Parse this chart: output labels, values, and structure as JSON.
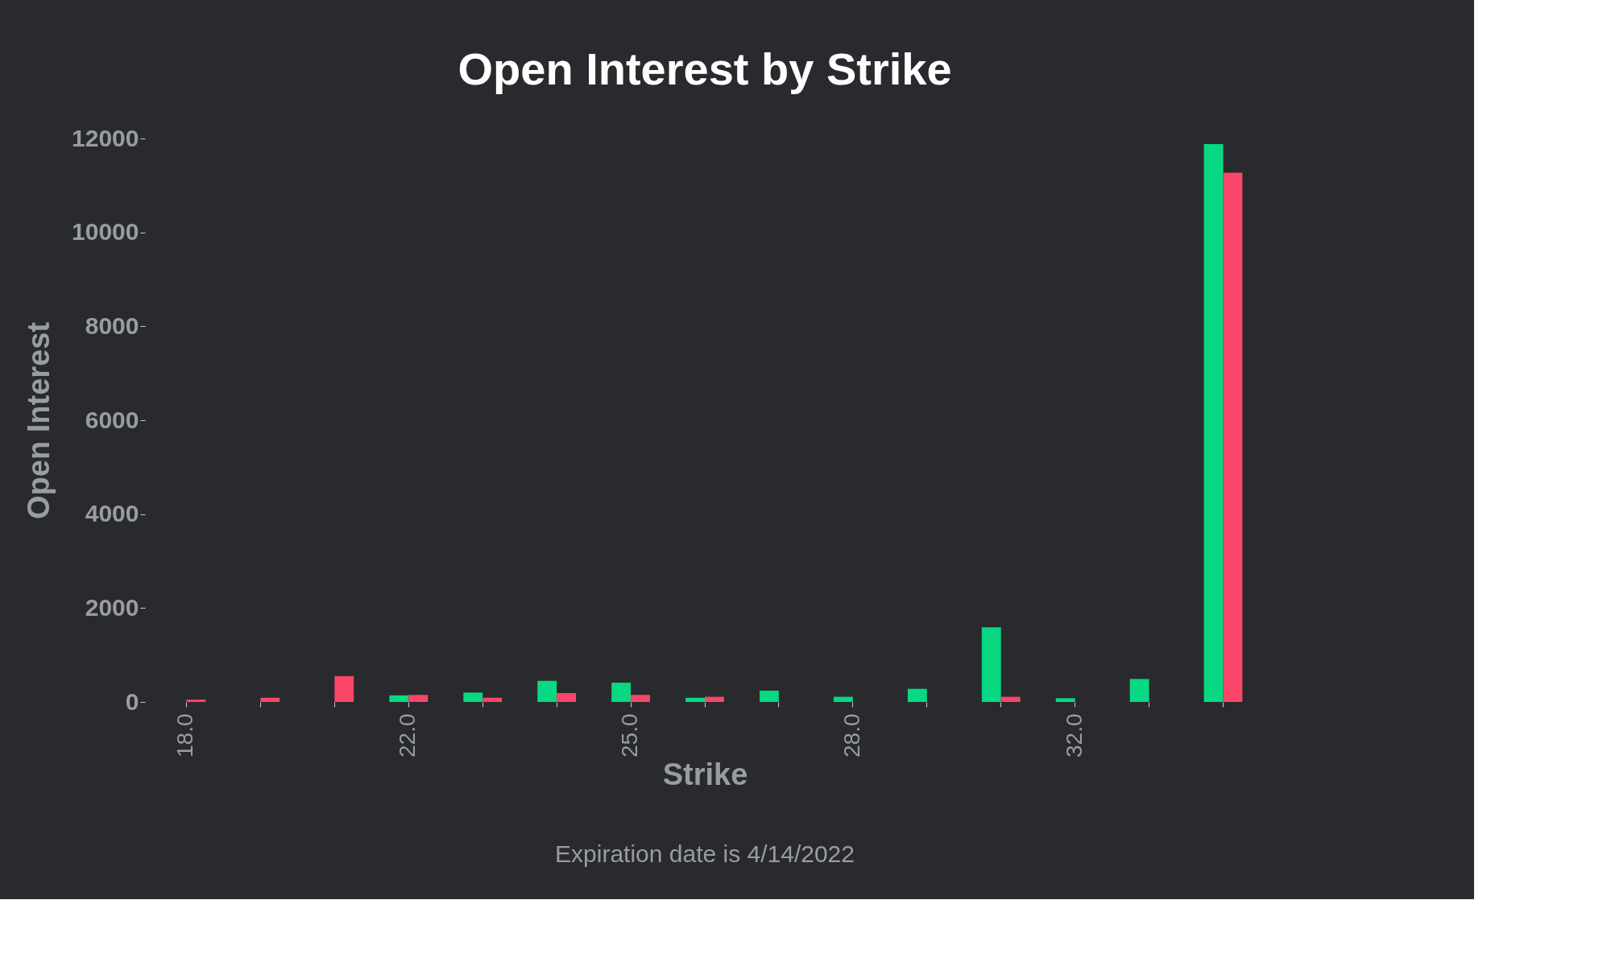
{
  "chart_data": {
    "type": "bar",
    "title": "Open Interest by Strike",
    "xlabel": "Strike",
    "ylabel": "Open Interest",
    "annotations": [
      "Expiration date is 4/14/2022"
    ],
    "categories": [
      "18.0",
      null,
      null,
      "22.0",
      null,
      null,
      "25.0",
      null,
      null,
      "28.0",
      null,
      null,
      "32.0",
      null,
      null
    ],
    "series": [
      {
        "color": "#08d882",
        "values": [
          0,
          0,
          0,
          140,
          200,
          450,
          410,
          90,
          240,
          110,
          280,
          1590,
          80,
          490,
          11880
        ]
      },
      {
        "color": "#f94668",
        "values": [
          50,
          90,
          550,
          150,
          90,
          190,
          150,
          110,
          0,
          0,
          0,
          110,
          0,
          0,
          11270
        ]
      }
    ],
    "ylim": [
      0,
      12000
    ],
    "yticks": [
      0,
      2000,
      4000,
      6000,
      8000,
      10000,
      12000
    ],
    "grid": false,
    "legend": false
  }
}
